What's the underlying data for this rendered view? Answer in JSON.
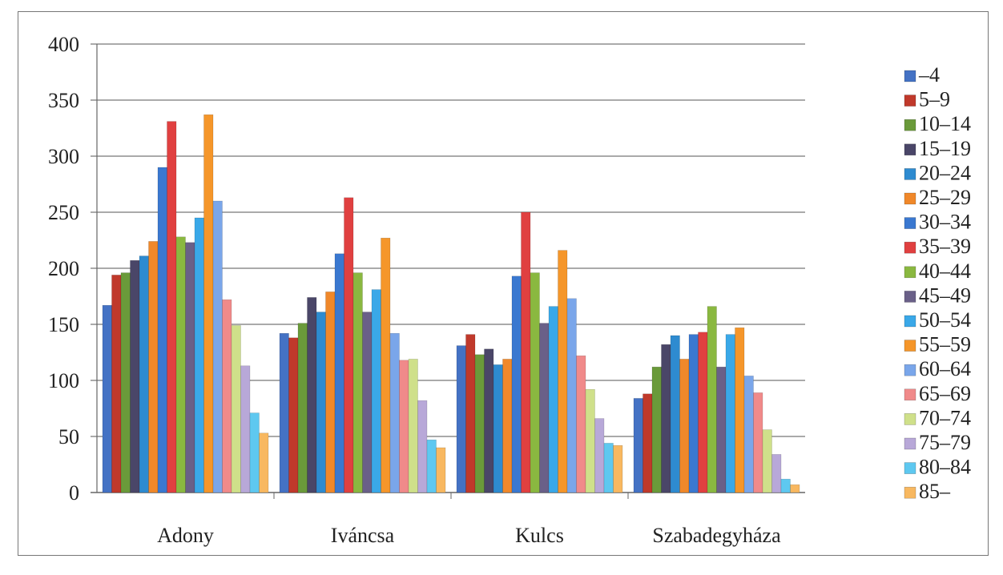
{
  "chart_data": {
    "type": "bar",
    "title": "",
    "xlabel": "",
    "ylabel": "",
    "ylim": [
      0,
      400
    ],
    "yticks": [
      0,
      50,
      100,
      150,
      200,
      250,
      300,
      350,
      400
    ],
    "grid": true,
    "legend_position": "right",
    "categories": [
      "Adony",
      "Iváncsa",
      "Kulcs",
      "Szabadegyháza"
    ],
    "series": [
      {
        "name": "–4",
        "color": "#4472c4",
        "values": [
          167,
          142,
          131,
          84
        ]
      },
      {
        "name": "5–9",
        "color": "#c0392b",
        "values": [
          194,
          138,
          141,
          88
        ]
      },
      {
        "name": "10–14",
        "color": "#6a9a3a",
        "values": [
          196,
          151,
          123,
          112
        ]
      },
      {
        "name": "15–19",
        "color": "#4a4668",
        "values": [
          207,
          174,
          128,
          132
        ]
      },
      {
        "name": "20–24",
        "color": "#2e8bd0",
        "values": [
          211,
          161,
          114,
          140
        ]
      },
      {
        "name": "25–29",
        "color": "#f0882a",
        "values": [
          224,
          179,
          119,
          119
        ]
      },
      {
        "name": "30–34",
        "color": "#3a78d0",
        "values": [
          290,
          213,
          193,
          141
        ]
      },
      {
        "name": "35–39",
        "color": "#e04040",
        "values": [
          331,
          263,
          250,
          143
        ]
      },
      {
        "name": "40–44",
        "color": "#8ab840",
        "values": [
          228,
          196,
          196,
          166
        ]
      },
      {
        "name": "45–49",
        "color": "#6a6088",
        "values": [
          223,
          161,
          151,
          112
        ]
      },
      {
        "name": "50–54",
        "color": "#3aa8e8",
        "values": [
          245,
          181,
          166,
          141
        ]
      },
      {
        "name": "55–59",
        "color": "#f5962a",
        "values": [
          337,
          227,
          216,
          147
        ]
      },
      {
        "name": "60–64",
        "color": "#7aa6ea",
        "values": [
          260,
          142,
          173,
          104
        ]
      },
      {
        "name": "65–69",
        "color": "#f08a8a",
        "values": [
          172,
          118,
          122,
          89
        ]
      },
      {
        "name": "70–74",
        "color": "#cfe08a",
        "values": [
          149,
          119,
          92,
          56
        ]
      },
      {
        "name": "75–79",
        "color": "#b8a8d8",
        "values": [
          113,
          82,
          66,
          34
        ]
      },
      {
        "name": "80–84",
        "color": "#5ec8f0",
        "values": [
          71,
          47,
          44,
          12
        ]
      },
      {
        "name": "85–",
        "color": "#f8b860",
        "values": [
          53,
          40,
          42,
          7
        ]
      }
    ]
  }
}
